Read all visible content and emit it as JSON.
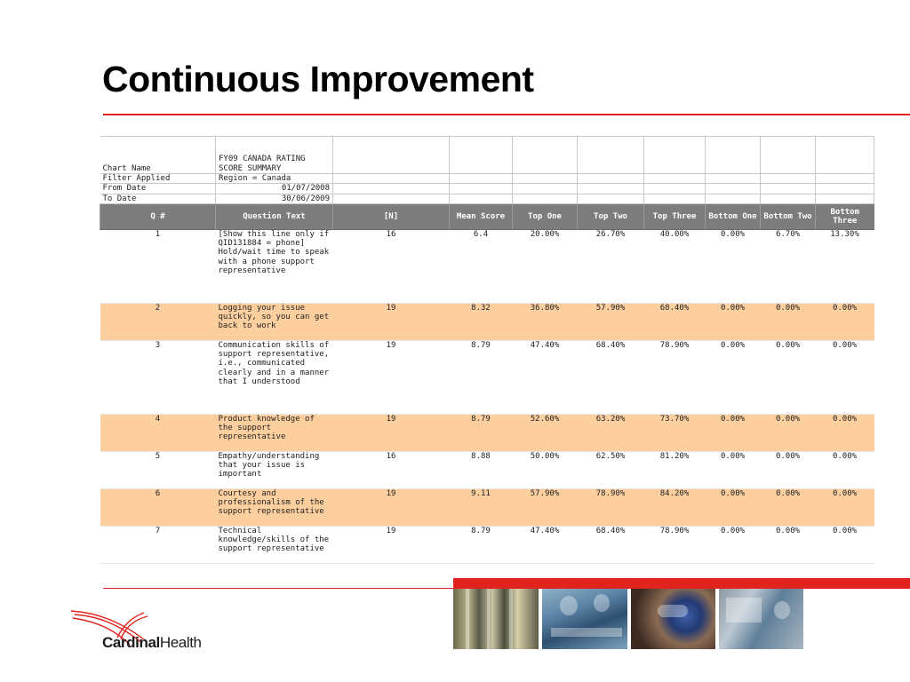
{
  "slide": {
    "title": "Continuous Improvement"
  },
  "report_meta": [
    {
      "label": "Chart Name",
      "value": "FY09 CANADA RATING SCORE SUMMARY"
    },
    {
      "label": "Filter Applied",
      "value": "Region = Canada"
    },
    {
      "label": "From Date",
      "value": "01/07/2008"
    },
    {
      "label": "To Date",
      "value": "30/06/2009"
    }
  ],
  "table": {
    "columns": [
      "Q #",
      "Question Text",
      "[N]",
      "Mean Score",
      "Top One",
      "Top Two",
      "Top Three",
      "Bottom One",
      "Bottom Two",
      "Bottom Three"
    ],
    "rows": [
      {
        "q": "1",
        "text": "[Show this line only if QID131884 = phone] Hold/wait time to speak with a phone support representative",
        "n": "16",
        "mean": "6.4",
        "top1": "20.00%",
        "top2": "26.70%",
        "top3": "40.00%",
        "bot1": "0.00%",
        "bot2": "6.70%",
        "bot3": "13.30%"
      },
      {
        "q": "2",
        "text": "Logging your issue quickly, so you can get back to work",
        "n": "19",
        "mean": "8.32",
        "top1": "36.80%",
        "top2": "57.90%",
        "top3": "68.40%",
        "bot1": "0.00%",
        "bot2": "0.00%",
        "bot3": "0.00%"
      },
      {
        "q": "3",
        "text": "Communication skills of support representative, i.e., communicated clearly and in a manner that I understood",
        "n": "19",
        "mean": "8.79",
        "top1": "47.40%",
        "top2": "68.40%",
        "top3": "78.90%",
        "bot1": "0.00%",
        "bot2": "0.00%",
        "bot3": "0.00%"
      },
      {
        "q": "4",
        "text": "Product knowledge of the support representative",
        "n": "19",
        "mean": "8.79",
        "top1": "52.60%",
        "top2": "63.20%",
        "top3": "73.70%",
        "bot1": "0.00%",
        "bot2": "0.00%",
        "bot3": "0.00%"
      },
      {
        "q": "5",
        "text": "Empathy/understanding that your issue is important",
        "n": "16",
        "mean": "8.88",
        "top1": "50.00%",
        "top2": "62.50%",
        "top3": "81.20%",
        "bot1": "0.00%",
        "bot2": "0.00%",
        "bot3": "0.00%"
      },
      {
        "q": "6",
        "text": "Courtesy and professionalism of the support representative",
        "n": "19",
        "mean": "9.11",
        "top1": "57.90%",
        "top2": "78.90%",
        "top3": "84.20%",
        "bot1": "0.00%",
        "bot2": "0.00%",
        "bot3": "0.00%"
      },
      {
        "q": "7",
        "text": "Technical knowledge/skills of the support representative",
        "n": "19",
        "mean": "8.79",
        "top1": "47.40%",
        "top2": "68.40%",
        "top3": "78.90%",
        "bot1": "0.00%",
        "bot2": "0.00%",
        "bot3": "0.00%"
      }
    ]
  },
  "branding": {
    "logo_name": "Cardinal",
    "logo_name_suffix": "Health",
    "brand_color": "#e0231c",
    "row_highlight_color": "#fdcf9f",
    "header_color": "#7d7d7d"
  },
  "photos": [
    "lab-shelves-photo",
    "surgeons-photo",
    "scientist-goggles-photo",
    "nurse-terminal-photo"
  ]
}
